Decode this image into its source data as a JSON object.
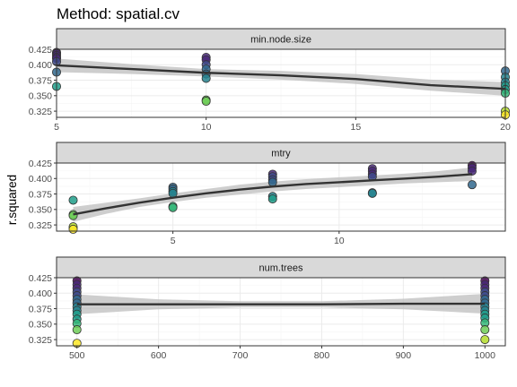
{
  "title": "Method: spatial.cv",
  "ylabel": "r.squared",
  "colors": {
    "strip_fill": "#d9d9d9",
    "strip_border": "#333333",
    "panel_border": "#333333",
    "grid_major": "#ebebeb",
    "grid_minor": "#f5f5f5",
    "ribbon": "#bdbdbd",
    "line": "#333333",
    "point_stroke": "#333333",
    "viridis": [
      "#440154",
      "#482878",
      "#3e4a89",
      "#31688e",
      "#26828e",
      "#1f9e89",
      "#35b779",
      "#6ece58",
      "#b5de2b",
      "#fde725"
    ]
  },
  "chart_data": [
    {
      "type": "scatter",
      "facet": "min.node.size",
      "xlim": [
        5,
        20
      ],
      "ylim": [
        0.315,
        0.425
      ],
      "x_ticks": [
        5,
        10,
        15,
        20
      ],
      "y_ticks": [
        0.325,
        0.35,
        0.375,
        0.4,
        0.425
      ],
      "y_tick_labels": [
        "0.325",
        "0.350",
        "0.375",
        "0.400",
        "0.425"
      ],
      "points": [
        {
          "x": 5,
          "y": 0.42
        },
        {
          "x": 5,
          "y": 0.418
        },
        {
          "x": 5,
          "y": 0.415
        },
        {
          "x": 5,
          "y": 0.412
        },
        {
          "x": 5,
          "y": 0.41
        },
        {
          "x": 5,
          "y": 0.405
        },
        {
          "x": 5,
          "y": 0.388
        },
        {
          "x": 5,
          "y": 0.365
        },
        {
          "x": 10,
          "y": 0.412
        },
        {
          "x": 10,
          "y": 0.408
        },
        {
          "x": 10,
          "y": 0.4
        },
        {
          "x": 10,
          "y": 0.393
        },
        {
          "x": 10,
          "y": 0.385
        },
        {
          "x": 10,
          "y": 0.378
        },
        {
          "x": 10,
          "y": 0.343
        },
        {
          "x": 10,
          "y": 0.341
        },
        {
          "x": 20,
          "y": 0.39
        },
        {
          "x": 20,
          "y": 0.38
        },
        {
          "x": 20,
          "y": 0.372
        },
        {
          "x": 20,
          "y": 0.366
        },
        {
          "x": 20,
          "y": 0.36
        },
        {
          "x": 20,
          "y": 0.354
        },
        {
          "x": 20,
          "y": 0.325
        },
        {
          "x": 20,
          "y": 0.319
        }
      ],
      "smooth": {
        "x": [
          5,
          7.5,
          10,
          12.5,
          15,
          17.5,
          20
        ],
        "y": [
          0.399,
          0.393,
          0.387,
          0.383,
          0.377,
          0.367,
          0.361
        ],
        "lower": [
          0.388,
          0.385,
          0.381,
          0.376,
          0.369,
          0.358,
          0.35
        ],
        "upper": [
          0.41,
          0.401,
          0.393,
          0.39,
          0.385,
          0.376,
          0.372
        ]
      }
    },
    {
      "type": "scatter",
      "facet": "mtry",
      "xlim": [
        1.5,
        15
      ],
      "ylim": [
        0.315,
        0.425
      ],
      "x_ticks": [
        5,
        10
      ],
      "y_ticks": [
        0.325,
        0.35,
        0.375,
        0.4,
        0.425
      ],
      "y_tick_labels": [
        "0.325",
        "0.350",
        "0.375",
        "0.400",
        "0.425"
      ],
      "points": [
        {
          "x": 2,
          "y": 0.365
        },
        {
          "x": 2,
          "y": 0.342
        },
        {
          "x": 2,
          "y": 0.34
        },
        {
          "x": 2,
          "y": 0.322
        },
        {
          "x": 2,
          "y": 0.318
        },
        {
          "x": 5,
          "y": 0.386
        },
        {
          "x": 5,
          "y": 0.383
        },
        {
          "x": 5,
          "y": 0.379
        },
        {
          "x": 5,
          "y": 0.376
        },
        {
          "x": 5,
          "y": 0.355
        },
        {
          "x": 5,
          "y": 0.353
        },
        {
          "x": 8,
          "y": 0.407
        },
        {
          "x": 8,
          "y": 0.403
        },
        {
          "x": 8,
          "y": 0.398
        },
        {
          "x": 8,
          "y": 0.394
        },
        {
          "x": 8,
          "y": 0.371
        },
        {
          "x": 8,
          "y": 0.367
        },
        {
          "x": 11,
          "y": 0.416
        },
        {
          "x": 11,
          "y": 0.412
        },
        {
          "x": 11,
          "y": 0.407
        },
        {
          "x": 11,
          "y": 0.403
        },
        {
          "x": 11,
          "y": 0.377
        },
        {
          "x": 11,
          "y": 0.376
        },
        {
          "x": 14,
          "y": 0.421
        },
        {
          "x": 14,
          "y": 0.417
        },
        {
          "x": 14,
          "y": 0.412
        },
        {
          "x": 14,
          "y": 0.39
        }
      ],
      "smooth": {
        "x": [
          2,
          3,
          4,
          5,
          6,
          7,
          8,
          9,
          10,
          11,
          12,
          13,
          14
        ],
        "y": [
          0.342,
          0.352,
          0.361,
          0.369,
          0.376,
          0.382,
          0.387,
          0.391,
          0.394,
          0.397,
          0.4,
          0.403,
          0.407
        ],
        "lower": [
          0.33,
          0.343,
          0.354,
          0.362,
          0.369,
          0.374,
          0.379,
          0.383,
          0.386,
          0.389,
          0.392,
          0.394,
          0.396
        ],
        "upper": [
          0.354,
          0.361,
          0.368,
          0.376,
          0.383,
          0.39,
          0.395,
          0.399,
          0.402,
          0.405,
          0.408,
          0.412,
          0.418
        ]
      }
    },
    {
      "type": "scatter",
      "facet": "num.trees",
      "xlim": [
        475,
        1025
      ],
      "ylim": [
        0.315,
        0.425
      ],
      "x_ticks": [
        500,
        600,
        700,
        800,
        900,
        1000
      ],
      "y_ticks": [
        0.325,
        0.35,
        0.375,
        0.4,
        0.425
      ],
      "y_tick_labels": [
        "0.325",
        "0.350",
        "0.375",
        "0.400",
        "0.425"
      ],
      "points": [
        {
          "x": 500,
          "y": 0.42
        },
        {
          "x": 500,
          "y": 0.414
        },
        {
          "x": 500,
          "y": 0.408
        },
        {
          "x": 500,
          "y": 0.402
        },
        {
          "x": 500,
          "y": 0.396
        },
        {
          "x": 500,
          "y": 0.39
        },
        {
          "x": 500,
          "y": 0.384
        },
        {
          "x": 500,
          "y": 0.378
        },
        {
          "x": 500,
          "y": 0.372
        },
        {
          "x": 500,
          "y": 0.366
        },
        {
          "x": 500,
          "y": 0.358
        },
        {
          "x": 500,
          "y": 0.351
        },
        {
          "x": 500,
          "y": 0.341
        },
        {
          "x": 500,
          "y": 0.319
        },
        {
          "x": 1000,
          "y": 0.42
        },
        {
          "x": 1000,
          "y": 0.414
        },
        {
          "x": 1000,
          "y": 0.408
        },
        {
          "x": 1000,
          "y": 0.402
        },
        {
          "x": 1000,
          "y": 0.396
        },
        {
          "x": 1000,
          "y": 0.39
        },
        {
          "x": 1000,
          "y": 0.384
        },
        {
          "x": 1000,
          "y": 0.378
        },
        {
          "x": 1000,
          "y": 0.372
        },
        {
          "x": 1000,
          "y": 0.366
        },
        {
          "x": 1000,
          "y": 0.36
        },
        {
          "x": 1000,
          "y": 0.352
        },
        {
          "x": 1000,
          "y": 0.341
        },
        {
          "x": 1000,
          "y": 0.325
        }
      ],
      "smooth": {
        "x": [
          500,
          600,
          700,
          800,
          900,
          1000
        ],
        "y": [
          0.382,
          0.382,
          0.382,
          0.382,
          0.383,
          0.383
        ],
        "lower": [
          0.366,
          0.374,
          0.377,
          0.377,
          0.374,
          0.367
        ],
        "upper": [
          0.398,
          0.39,
          0.387,
          0.387,
          0.391,
          0.399
        ]
      }
    }
  ]
}
